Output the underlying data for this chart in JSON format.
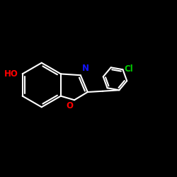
{
  "background": "#000000",
  "bond_color": "#ffffff",
  "bond_width": 1.5,
  "N_color": "#1414ff",
  "O_color": "#ff0000",
  "Cl_color": "#00cc00",
  "label_HO": "HO",
  "label_N": "N",
  "label_O": "O",
  "label_Cl": "Cl",
  "figsize": [
    2.5,
    2.5
  ],
  "dpi": 100,
  "font_size": 8.5
}
